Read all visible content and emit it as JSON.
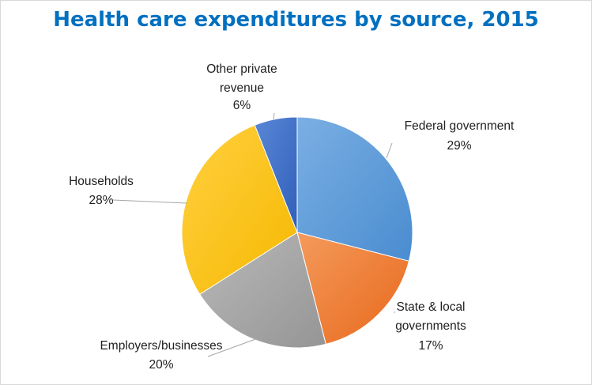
{
  "chart_data": {
    "type": "pie",
    "title": "Health care expenditures by source, 2015",
    "slices": [
      {
        "label": "Federal government",
        "value": 29,
        "value_label": "29%",
        "color": "#5b9bd5"
      },
      {
        "label": "State & local governments",
        "value": 17,
        "value_label": "17%",
        "color": "#ed7d31"
      },
      {
        "label": "Employers/businesses",
        "value": 20,
        "value_label": "20%",
        "color": "#a5a5a5"
      },
      {
        "label": "Households",
        "value": 28,
        "value_label": "28%",
        "color": "#ffc000"
      },
      {
        "label": "Other private revenue",
        "value": 6,
        "value_label": "6%",
        "color": "#4472c4"
      }
    ],
    "start_angle": "12 o'clock, clockwise",
    "legend": "none",
    "data_labels": "outside with leader lines"
  }
}
